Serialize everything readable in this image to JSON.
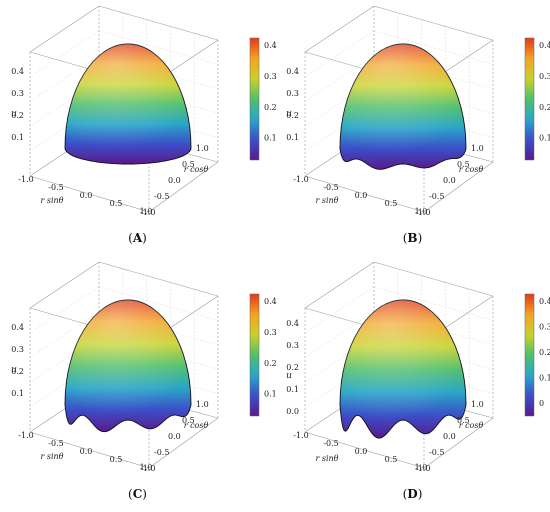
{
  "figure": {
    "panels": [
      {
        "label": "A",
        "colorbar_ticks": [
          "0.4",
          "0.3",
          "0.2",
          "0.1"
        ],
        "z_ticks": [
          "0.4",
          "0.3",
          "0.2",
          "0.1"
        ],
        "x_ticks": [
          "-1.0",
          "-0.5",
          "0.0",
          "0.5",
          "1.0"
        ],
        "y_ticks": [
          "1.0",
          "0.5",
          "0.0",
          "-0.5",
          "-1.0"
        ],
        "xlabel": "r sinθ",
        "ylabel": "r cosθ",
        "zlabel": "u",
        "edge_waves": 0,
        "edge_amp": 0
      },
      {
        "label": "B",
        "colorbar_ticks": [
          "0.4",
          "0.3",
          "0.2",
          "0.1"
        ],
        "z_ticks": [
          "0.4",
          "0.3",
          "0.2",
          "0.1"
        ],
        "x_ticks": [
          "-1.0",
          "-0.5",
          "0.0",
          "0.5",
          "1.0"
        ],
        "y_ticks": [
          "1.0",
          "0.5",
          "0.0",
          "-0.5",
          "-1.0"
        ],
        "xlabel": "r sinθ",
        "ylabel": "r cosθ",
        "zlabel": "u",
        "edge_waves": 8,
        "edge_amp": 0.35
      },
      {
        "label": "C",
        "colorbar_ticks": [
          "0.4",
          "0.3",
          "0.2",
          "0.1"
        ],
        "z_ticks": [
          "0.4",
          "0.3",
          "0.2",
          "0.1"
        ],
        "x_ticks": [
          "-1.0",
          "-0.5",
          "0.0",
          "0.5",
          "1.0"
        ],
        "y_ticks": [
          "1.0",
          "0.5",
          "0.0",
          "-0.5",
          "-1.0"
        ],
        "xlabel": "r sinθ",
        "ylabel": "r cosθ",
        "zlabel": "u",
        "edge_waves": 8,
        "edge_amp": 0.7
      },
      {
        "label": "D",
        "colorbar_ticks": [
          "0.4",
          "0.3",
          "0.2",
          "0.1",
          "0"
        ],
        "z_ticks": [
          "0.4",
          "0.3",
          "0.2",
          "0.1",
          "0.0"
        ],
        "x_ticks": [
          "-1.0",
          "-0.5",
          "0.0",
          "0.5",
          "1.0"
        ],
        "y_ticks": [
          "1.0",
          "0.5",
          "0.0",
          "-0.5",
          "-1.0"
        ],
        "xlabel": "r sinθ",
        "ylabel": "r cosθ",
        "zlabel": "u",
        "edge_waves": 8,
        "edge_amp": 1.05
      }
    ],
    "colormap": [
      "#5a1a8c",
      "#3b4fc8",
      "#2aa6c9",
      "#4fbf6a",
      "#c8d22a",
      "#f2a322",
      "#e03a1e"
    ]
  }
}
